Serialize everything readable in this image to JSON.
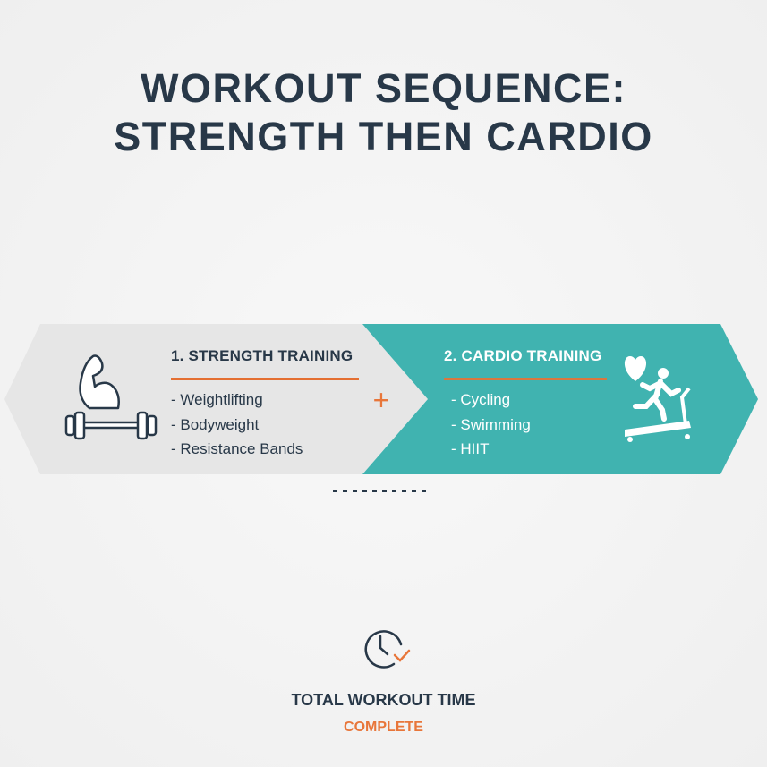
{
  "title_lines": [
    "WORKOUT SEQUENCE:",
    "STRENGTH THEN CARDIO"
  ],
  "colors": {
    "teal": "#40b3b0",
    "grey_panel": "#e6e6e6",
    "dark": "#283848",
    "accent": "#e8763a"
  },
  "strength": {
    "heading": "1. STRENGTH TRAINING",
    "icons": [
      "flexed-arm-icon",
      "dumbbell-icon"
    ],
    "items": [
      "- Weightlifting",
      "- Bodyweight",
      "- Resistance Bands"
    ]
  },
  "connector": "+",
  "cardio": {
    "heading": "2. CARDIO TRAINING",
    "icons": [
      "heart-icon",
      "treadmill-runner-icon"
    ],
    "items": [
      "- Cycling",
      "- Swimming",
      "- HIIT"
    ]
  },
  "footer": {
    "icon": "clock-check-icon",
    "label": "TOTAL WORKOUT TIME",
    "status": "COMPLETE"
  }
}
